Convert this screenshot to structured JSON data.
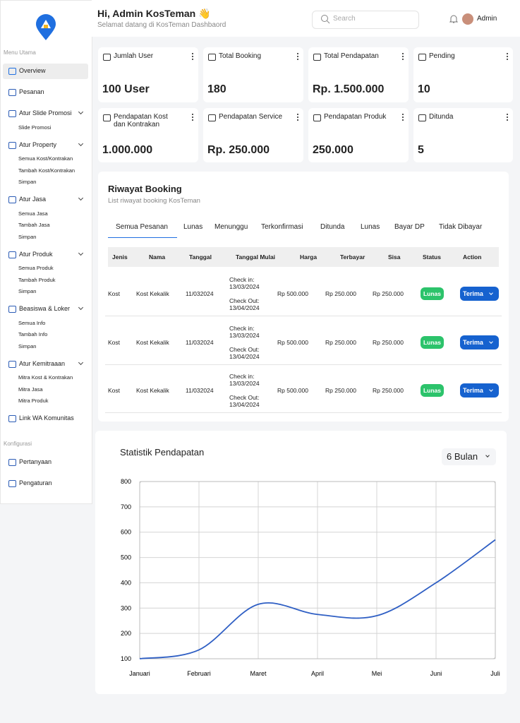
{
  "sidebar": {
    "sections": [
      {
        "title": "Menu Utama",
        "items": [
          {
            "label": "Overview",
            "active": true
          },
          {
            "label": "Pesanan"
          },
          {
            "label": "Atur Slide Promosi",
            "children": [
              "Slide Promosi"
            ]
          },
          {
            "label": "Atur Property",
            "children": [
              "Semua Kost/Kontrakan",
              "Tambah Kost/Kontrakan",
              "Simpan"
            ]
          },
          {
            "label": "Atur Jasa",
            "children": [
              "Semua Jasa",
              "Tambah Jasa",
              "Simpan"
            ]
          },
          {
            "label": "Atur Produk",
            "children": [
              "Semua Produk",
              "Tambah Produk",
              "Simpan"
            ]
          },
          {
            "label": "Beasiswa & Loker",
            "children": [
              "Semua Info",
              "Tambah Info",
              "Simpan"
            ]
          },
          {
            "label": "Atur Kemitraaan",
            "children": [
              "Mitra Kost & Kontrakan",
              "Mitra Jasa",
              "Mitra Produk"
            ]
          },
          {
            "label": "Link WA Komunitas"
          }
        ]
      },
      {
        "title": "Konfigurasi",
        "items": [
          {
            "label": "Pertanyaan"
          },
          {
            "label": "Pengaturan"
          }
        ]
      }
    ]
  },
  "header": {
    "greeting": "Hi, Admin KosTeman 👋",
    "subtitle": "Selamat datang di KosTeman Dashbaord",
    "search_placeholder": "Search",
    "user": "Admin"
  },
  "stats": [
    {
      "label": "Jumlah User",
      "value": "100 User"
    },
    {
      "label": "Total Booking",
      "value": "180"
    },
    {
      "label": "Total Pendapatan",
      "value": "Rp. 1.500.000"
    },
    {
      "label": "Pending",
      "value": "10"
    },
    {
      "label": "Pendapatan Kost dan Kontrakan",
      "value": "1.000.000"
    },
    {
      "label": "Pendapatan Service",
      "value": "Rp. 250.000"
    },
    {
      "label": "Pendapatan Produk",
      "value": "250.000"
    },
    {
      "label": "Ditunda",
      "value": "5"
    }
  ],
  "booking": {
    "title": "Riwayat Booking",
    "subtitle": "List riwayat booking KosTeman",
    "tabs": [
      "Semua Pesanan",
      "Lunas",
      "Menunggu",
      "Terkonfirmasi",
      "Ditunda",
      "Lunas",
      "Bayar DP",
      "Tidak Dibayar"
    ],
    "active_tab": 0,
    "columns": [
      "Jenis",
      "Nama",
      "Tanggal",
      "Tanggal Mulai",
      "Harga",
      "Terbayar",
      "Sisa",
      "Status",
      "Action"
    ],
    "rows": [
      {
        "jenis": "Kost",
        "nama": "Kost Kekalik",
        "tanggal": "11/032024",
        "check_in_label": "Check in:",
        "check_in": "13/03/2024",
        "check_out_label": "Check Out:",
        "check_out": "13/04/2024",
        "harga": "Rp 500.000",
        "terbayar": "Rp 250.000",
        "sisa": "Rp 250.000",
        "status": "Lunas",
        "action": "Terima"
      },
      {
        "jenis": "Kost",
        "nama": "Kost Kekalik",
        "tanggal": "11/032024",
        "check_in_label": "Check in:",
        "check_in": "13/03/2024",
        "check_out_label": "Check Out:",
        "check_out": "13/04/2024",
        "harga": "Rp 500.000",
        "terbayar": "Rp 250.000",
        "sisa": "Rp 250.000",
        "status": "Lunas",
        "action": "Terima"
      },
      {
        "jenis": "Kost",
        "nama": "Kost Kekalik",
        "tanggal": "11/032024",
        "check_in_label": "Check in:",
        "check_in": "13/03/2024",
        "check_out_label": "Check Out:",
        "check_out": "13/04/2024",
        "harga": "Rp 500.000",
        "terbayar": "Rp 250.000",
        "sisa": "Rp 250.000",
        "status": "Lunas",
        "action": "Terima"
      }
    ]
  },
  "chart_data": {
    "type": "line",
    "title": "Statistik Pendapatan",
    "period": "6 Bulan",
    "categories": [
      "Januari",
      "Februari",
      "Maret",
      "April",
      "Mei",
      "Juni",
      "Juli"
    ],
    "values": [
      100,
      135,
      315,
      275,
      270,
      400,
      570
    ],
    "color": "#2f5fc4",
    "ylim": [
      100,
      800
    ],
    "yticks": [
      100,
      200,
      300,
      400,
      500,
      600,
      700,
      800
    ],
    "grid": true
  }
}
